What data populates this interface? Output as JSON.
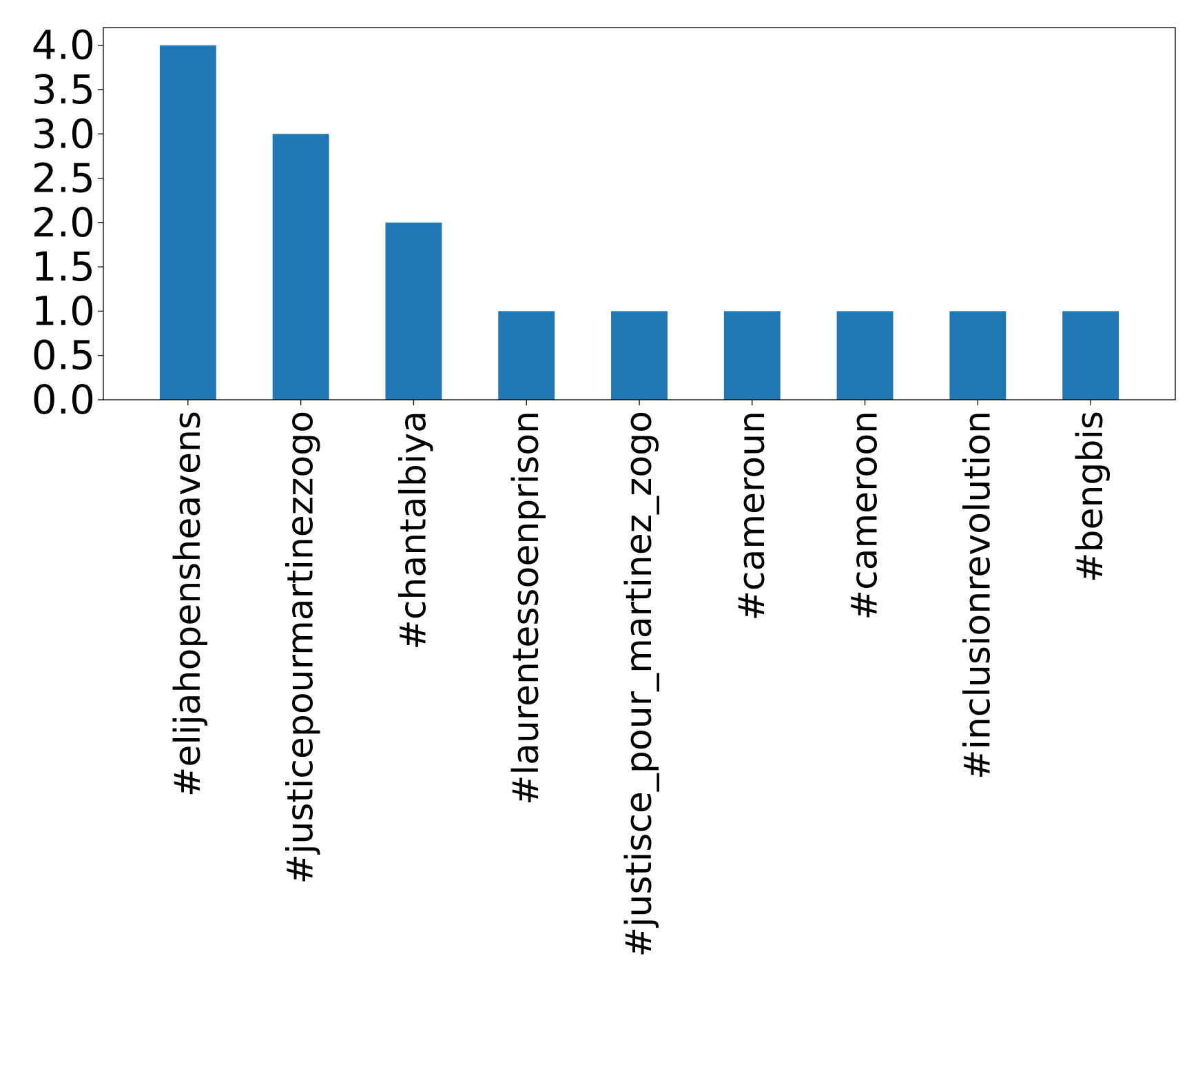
{
  "chart_data": {
    "type": "bar",
    "title": "",
    "xlabel": "",
    "ylabel": "",
    "categories": [
      "#elijahopensheavens",
      "#justicepourmartinezzogo",
      "#chantalbiya",
      "#laurentessoenprison",
      "#justisce_pour_martinez_zogo",
      "#cameroun",
      "#cameroon",
      "#inclusionrevolution",
      "#bengbis"
    ],
    "values": [
      4,
      3,
      2,
      1,
      1,
      1,
      1,
      1,
      1
    ],
    "ylim": [
      0,
      4.2
    ],
    "yticks": [
      "0.0",
      "0.5",
      "1.0",
      "1.5",
      "2.0",
      "2.5",
      "3.0",
      "3.5",
      "4.0"
    ],
    "bar_color": "#1f77b4",
    "grid": false,
    "legend": "none"
  }
}
